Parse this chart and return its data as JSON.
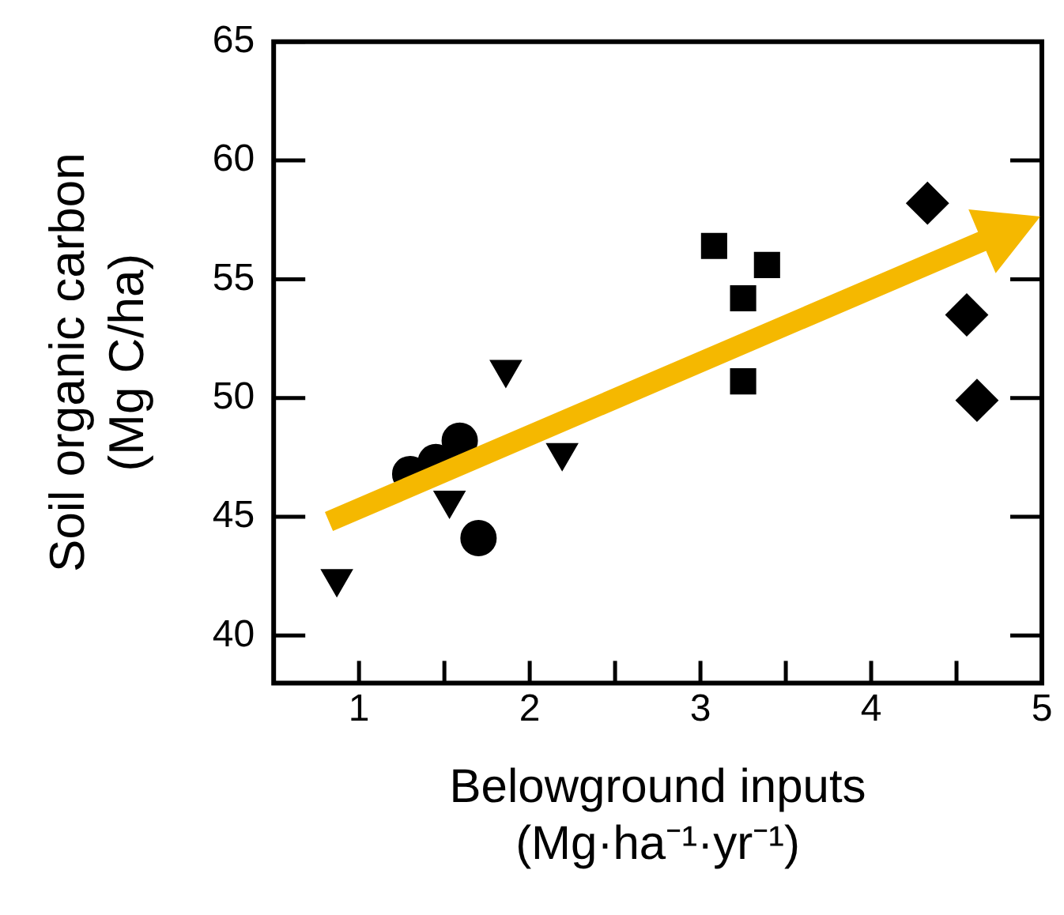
{
  "chart_data": {
    "type": "scatter",
    "xlabel": "Belowground inputs\n(Mg·ha⁻¹·yr⁻¹)",
    "ylabel": "Soil organic carbon\n(Mg C/ha)",
    "xlim": [
      0.5,
      5
    ],
    "xticks": [
      1,
      {
        "value": 1.5,
        "label": null
      },
      2,
      {
        "value": 2.5,
        "label": null
      },
      3,
      {
        "value": 3.5,
        "label": null
      },
      4,
      {
        "value": 4.5,
        "label": null
      },
      5
    ],
    "ylim": [
      38,
      65
    ],
    "yticks": [
      40,
      45,
      50,
      55,
      60,
      65
    ],
    "grid": false,
    "legend": false,
    "series": [
      {
        "color": "#000000",
        "marker": "triangle",
        "x": [
          0.87,
          1.53,
          1.86,
          2.19
        ],
        "values": [
          42.4,
          45.7,
          51.2,
          47.7
        ]
      },
      {
        "color": "#000000",
        "marker": "circle",
        "x": [
          1.3,
          1.45,
          1.59,
          1.7
        ],
        "values": [
          46.8,
          47.3,
          48.2,
          44.1
        ]
      },
      {
        "color": "#000000",
        "marker": "square",
        "x": [
          3.08,
          3.25,
          3.25,
          3.39
        ],
        "values": [
          56.4,
          54.2,
          50.7,
          55.6
        ]
      },
      {
        "color": "#000000",
        "marker": "diamond",
        "x": [
          4.33,
          4.56,
          4.62
        ],
        "values": [
          58.2,
          53.5,
          49.9
        ]
      }
    ]
  }
}
